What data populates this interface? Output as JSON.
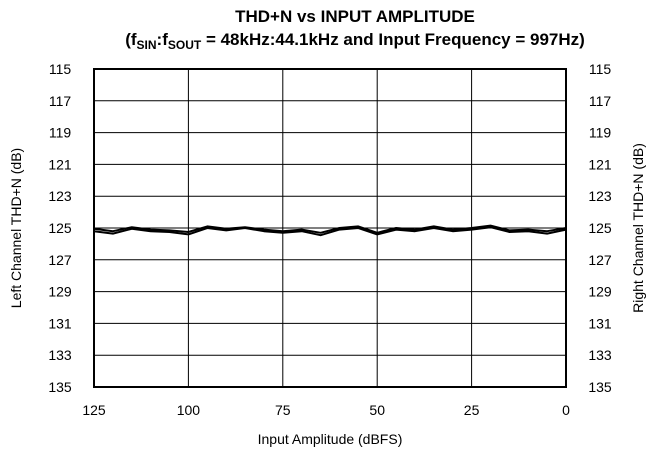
{
  "chart_data": {
    "type": "line",
    "title": "THD+N vs INPUT AMPLITUDE",
    "subtitle": {
      "open": "(f",
      "sub1": "SIN",
      "colon": ":f",
      "sub2": "SOUT",
      "rest": " = 48kHz:44.1kHz and Input Frequency = 997Hz)"
    },
    "xlabel": "Input Amplitude (dBFS)",
    "ylabel_left": "Left Channel THD+N (dB)",
    "ylabel_right": "Right Channel THD+N (dB)",
    "xlim": [
      125,
      0
    ],
    "ylim": [
      115,
      135
    ],
    "y_inverted": true,
    "x_ticks": [
      125,
      100,
      75,
      50,
      25,
      0
    ],
    "y_ticks": [
      115,
      117,
      119,
      121,
      123,
      125,
      127,
      129,
      131,
      133,
      135
    ],
    "grid": true,
    "series": [
      {
        "x": [
          125,
          120,
          115,
          110,
          105,
          100,
          95,
          90,
          85,
          80,
          75,
          70,
          65,
          60,
          55,
          50,
          45,
          40,
          35,
          30,
          25,
          20,
          15,
          10,
          5,
          0
        ],
        "values": [
          125.2,
          125.35,
          125.05,
          125.2,
          125.25,
          125.4,
          125.0,
          125.15,
          125.0,
          125.2,
          125.3,
          125.2,
          125.45,
          125.1,
          125.0,
          125.4,
          125.1,
          125.2,
          125.0,
          125.2,
          125.1,
          124.95,
          125.25,
          125.2,
          125.35,
          125.1
        ]
      },
      {
        "x": [
          125,
          120,
          115,
          110,
          105,
          100,
          95,
          90,
          85,
          80,
          75,
          70,
          65,
          60,
          55,
          50,
          45,
          40,
          35,
          30,
          25,
          20,
          15,
          10,
          5,
          0
        ],
        "values": [
          125.05,
          125.2,
          124.95,
          125.1,
          125.15,
          125.25,
          124.9,
          125.05,
          124.95,
          125.1,
          125.2,
          125.1,
          125.3,
          125.0,
          124.9,
          125.3,
          125.0,
          125.1,
          124.9,
          125.1,
          125.0,
          124.85,
          125.15,
          125.1,
          125.2,
          125.0
        ]
      }
    ]
  }
}
